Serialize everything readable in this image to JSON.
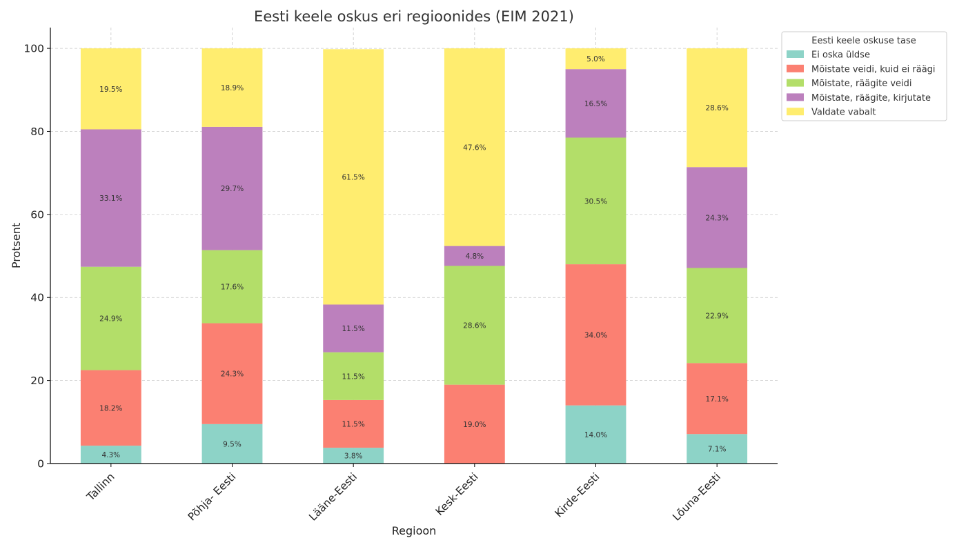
{
  "chart_data": {
    "type": "bar",
    "stacked": true,
    "title": "Eesti keele oskus eri regioonides (EIM 2021)",
    "xlabel": "Regioon",
    "ylabel": "Protsent",
    "ylim": [
      0,
      105
    ],
    "yticks": [
      0,
      20,
      40,
      60,
      80,
      100
    ],
    "grid": true,
    "legend_title": "Eesti keele oskuse tase",
    "legend_position": "top-right",
    "categories": [
      "Tallinn",
      "Põhja- Eesti",
      "Lääne-Eesti",
      "Kesk-Eesti",
      "Kirde-Eesti",
      "Lõuna-Eesti"
    ],
    "series": [
      {
        "name": "Ei oska üldse",
        "color": "#8dd3c7",
        "values": [
          4.3,
          9.5,
          3.8,
          0,
          14.0,
          7.1
        ]
      },
      {
        "name": "Mõistate veidi, kuid ei räägi",
        "color": "#fb8072",
        "values": [
          18.2,
          24.3,
          11.5,
          19.0,
          34.0,
          17.1
        ]
      },
      {
        "name": "Mõistate, räägite veidi",
        "color": "#b3de69",
        "values": [
          24.9,
          17.6,
          11.5,
          28.6,
          30.5,
          22.9
        ]
      },
      {
        "name": "Mõistate, räägite, kirjutate",
        "color": "#bc80bd",
        "values": [
          33.1,
          29.7,
          11.5,
          4.8,
          16.5,
          24.3
        ]
      },
      {
        "name": "Valdate vabalt",
        "color": "#ffed6f",
        "values": [
          19.5,
          18.9,
          61.5,
          47.6,
          5.0,
          28.6
        ]
      }
    ]
  }
}
